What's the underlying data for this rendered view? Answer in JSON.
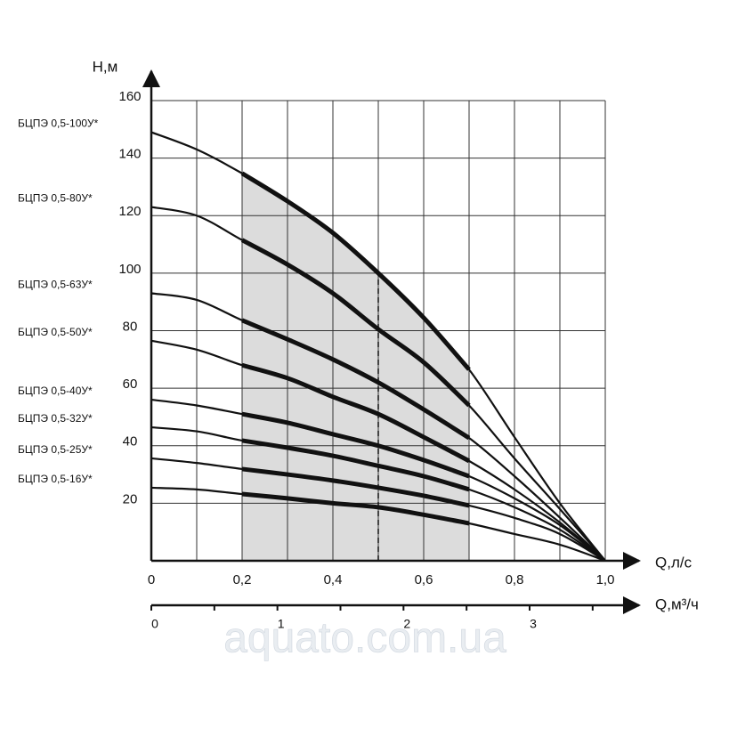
{
  "chart_data": {
    "type": "line",
    "y_label": "H,м",
    "x_label": "Q,л/с",
    "x2_label": "Q,м³/ч",
    "watermark": "aquato.com.ua",
    "x": [
      0,
      0.1,
      0.2,
      0.3,
      0.4,
      0.5,
      0.6,
      0.7,
      0.8,
      0.9,
      1.0
    ],
    "series": [
      {
        "name": "БЦПЭ 0,5-100У*",
        "color": "#111111",
        "values": [
          149,
          143,
          134.7,
          125,
          114,
          100,
          84.5,
          66.5,
          43,
          20,
          0
        ]
      },
      {
        "name": "БЦПЭ 0,5-80У*",
        "color": "#111111",
        "values": [
          123,
          120,
          111.5,
          103,
          93,
          80.5,
          69,
          54,
          35.6,
          18,
          0
        ]
      },
      {
        "name": "БЦПЭ 0,5-63У*",
        "color": "#111111",
        "values": [
          93,
          90.7,
          83.6,
          77,
          70,
          62,
          52.6,
          42.7,
          29.4,
          15,
          0
        ]
      },
      {
        "name": "БЦПЭ 0,5-50У*",
        "color": "#111111",
        "values": [
          76.5,
          73.4,
          68,
          63.5,
          57,
          51,
          43,
          34.7,
          24.8,
          13.3,
          0
        ]
      },
      {
        "name": "БЦПЭ 0,5-40У*",
        "color": "#111111",
        "values": [
          56,
          54,
          51,
          48,
          44,
          40,
          35,
          29.4,
          21.7,
          12.4,
          0
        ]
      },
      {
        "name": "БЦПЭ 0,5-32У*",
        "color": "#111111",
        "values": [
          46.4,
          45,
          41.8,
          39.3,
          36.5,
          33,
          29.4,
          24.8,
          18.6,
          10.8,
          0
        ]
      },
      {
        "name": "БЦПЭ 0,5-25У*",
        "color": "#111111",
        "values": [
          35.6,
          34,
          31.9,
          30,
          27.9,
          25.4,
          22.6,
          19.2,
          14.9,
          9.3,
          0
        ]
      },
      {
        "name": "БЦПЭ 0,5-16У*",
        "color": "#111111",
        "values": [
          25.4,
          24.8,
          23.2,
          21.7,
          20,
          18.6,
          16,
          13,
          9.3,
          5.6,
          0
        ]
      }
    ],
    "xlim": [
      0,
      1.0
    ],
    "xticks": [
      0,
      {
        "value": 0.2,
        "label": "0,2"
      },
      {
        "value": 0.4,
        "label": "0,4"
      },
      {
        "value": 0.6,
        "label": "0,6"
      },
      {
        "value": 0.8,
        "label": "0,8"
      },
      {
        "value": 1.0,
        "label": "1,0"
      }
    ],
    "xminor": [
      0.1,
      0.3,
      0.5,
      0.7,
      0.9
    ],
    "ylim": [
      0,
      160
    ],
    "yticks": [
      20,
      40,
      60,
      80,
      100,
      120,
      140,
      160
    ],
    "x2lim": [
      0,
      3.6
    ],
    "x2ticks": [
      0,
      1,
      2,
      3
    ],
    "x2minor": [
      0.5,
      1.5,
      2.5,
      3.5
    ],
    "working_range": [
      0.2,
      0.7
    ],
    "nominal_q": 0.5,
    "shade_color": "#dcdcdc",
    "grid": true
  }
}
